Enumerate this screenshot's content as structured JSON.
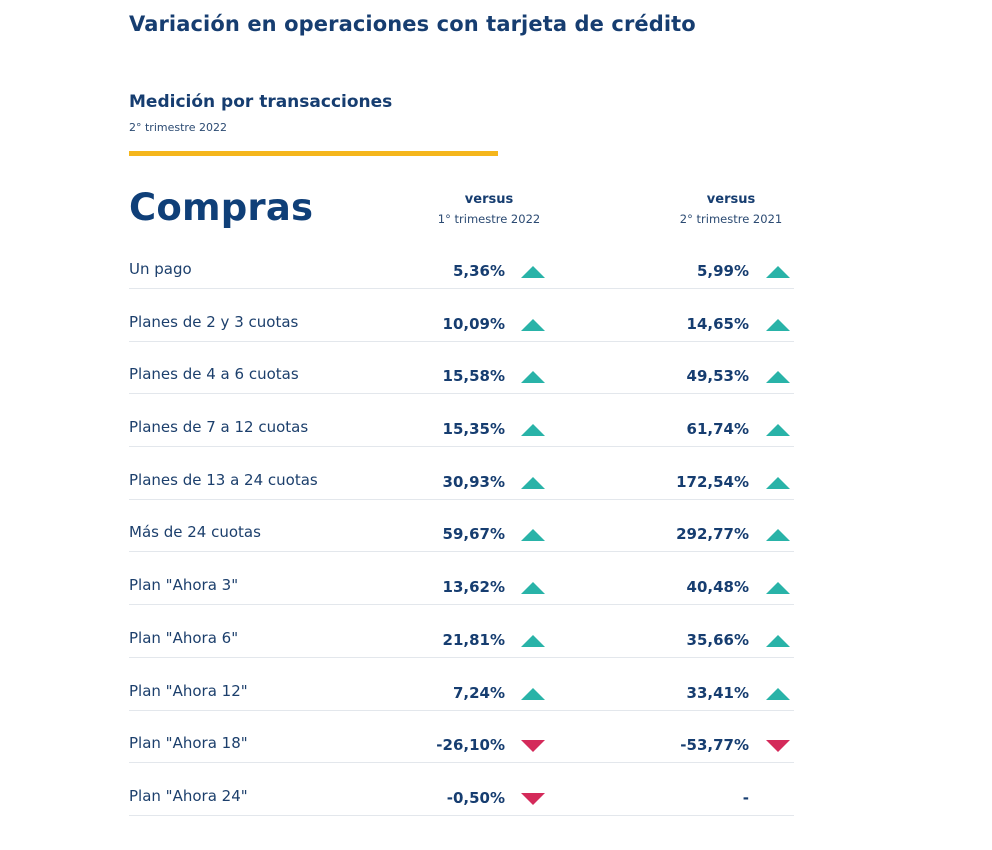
{
  "title": "Variación en operaciones con tarjeta de crédito",
  "section": {
    "title": "Medición por transacciones",
    "period": "2° trimestre 2022"
  },
  "category": "Compras",
  "columns": [
    {
      "heading": "versus",
      "period": "1° trimestre 2022"
    },
    {
      "heading": "versus",
      "period": "2° trimestre 2021"
    }
  ],
  "colors": {
    "up": "#29b3a8",
    "down": "#d42a5a",
    "accent_bar": "#f5b61c",
    "text": "#163d70"
  },
  "rows": [
    {
      "label": "Un pago",
      "vs_q1_2022": "5,36%",
      "vs_q1_trend": "up",
      "vs_q2_2021": "5,99%",
      "vs_q2_trend": "up"
    },
    {
      "label": "Planes de 2 y 3 cuotas",
      "vs_q1_2022": "10,09%",
      "vs_q1_trend": "up",
      "vs_q2_2021": "14,65%",
      "vs_q2_trend": "up"
    },
    {
      "label": "Planes de 4 a 6 cuotas",
      "vs_q1_2022": "15,58%",
      "vs_q1_trend": "up",
      "vs_q2_2021": "49,53%",
      "vs_q2_trend": "up"
    },
    {
      "label": "Planes de 7 a 12 cuotas",
      "vs_q1_2022": "15,35%",
      "vs_q1_trend": "up",
      "vs_q2_2021": "61,74%",
      "vs_q2_trend": "up"
    },
    {
      "label": "Planes de 13 a 24 cuotas",
      "vs_q1_2022": "30,93%",
      "vs_q1_trend": "up",
      "vs_q2_2021": "172,54%",
      "vs_q2_trend": "up"
    },
    {
      "label": "Más de 24 cuotas",
      "vs_q1_2022": "59,67%",
      "vs_q1_trend": "up",
      "vs_q2_2021": "292,77%",
      "vs_q2_trend": "up"
    },
    {
      "label": "Plan \"Ahora 3\"",
      "vs_q1_2022": "13,62%",
      "vs_q1_trend": "up",
      "vs_q2_2021": "40,48%",
      "vs_q2_trend": "up"
    },
    {
      "label": "Plan \"Ahora 6\"",
      "vs_q1_2022": "21,81%",
      "vs_q1_trend": "up",
      "vs_q2_2021": "35,66%",
      "vs_q2_trend": "up"
    },
    {
      "label": "Plan \"Ahora 12\"",
      "vs_q1_2022": "7,24%",
      "vs_q1_trend": "up",
      "vs_q2_2021": "33,41%",
      "vs_q2_trend": "up"
    },
    {
      "label": "Plan \"Ahora 18\"",
      "vs_q1_2022": "-26,10%",
      "vs_q1_trend": "down",
      "vs_q2_2021": "-53,77%",
      "vs_q2_trend": "down"
    },
    {
      "label": "Plan \"Ahora 24\"",
      "vs_q1_2022": "-0,50%",
      "vs_q1_trend": "down",
      "vs_q2_2021": "-",
      "vs_q2_trend": "none"
    }
  ]
}
